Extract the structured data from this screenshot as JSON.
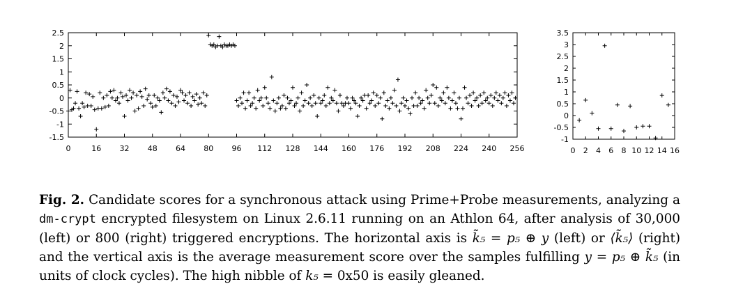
{
  "chart_data": [
    {
      "type": "scatter",
      "xlim": [
        0,
        256
      ],
      "ylim": [
        -1.5,
        2.5
      ],
      "x_ticks": [
        0,
        16,
        32,
        48,
        64,
        80,
        96,
        112,
        128,
        144,
        160,
        176,
        192,
        208,
        224,
        240,
        256
      ],
      "x_tick_labels": [
        "0",
        "16",
        "32",
        "48",
        "64",
        "80",
        "96",
        "112",
        "128",
        "144",
        "160",
        "176",
        "192",
        "208",
        "224",
        "240",
        "256"
      ],
      "y_ticks": [
        -1.5,
        -1,
        -0.5,
        0,
        0.5,
        1,
        1.5,
        2,
        2.5
      ],
      "y_tick_labels": [
        "-1.5",
        "-1",
        "-0.5",
        "0",
        "0.5",
        "1",
        "1.5",
        "2",
        "2.5"
      ],
      "marker": "+",
      "points": [
        [
          0,
          -0.5
        ],
        [
          1,
          0.3
        ],
        [
          2,
          -0.45
        ],
        [
          3,
          -0.4
        ],
        [
          4,
          -0.2
        ],
        [
          5,
          0.25
        ],
        [
          6,
          -0.4
        ],
        [
          7,
          -0.7
        ],
        [
          8,
          -0.2
        ],
        [
          9,
          -0.35
        ],
        [
          10,
          0.2
        ],
        [
          11,
          -0.3
        ],
        [
          12,
          0.15
        ],
        [
          13,
          -0.3
        ],
        [
          14,
          0.05
        ],
        [
          15,
          -0.45
        ],
        [
          16,
          -1.2
        ],
        [
          17,
          -0.4
        ],
        [
          18,
          0.2
        ],
        [
          19,
          -0.4
        ],
        [
          20,
          0.0
        ],
        [
          21,
          -0.35
        ],
        [
          22,
          0.1
        ],
        [
          23,
          -0.3
        ],
        [
          24,
          0.25
        ],
        [
          25,
          0.0
        ],
        [
          26,
          0.3
        ],
        [
          27,
          -0.1
        ],
        [
          28,
          0.0
        ],
        [
          29,
          -0.2
        ],
        [
          30,
          0.2
        ],
        [
          31,
          0.05
        ],
        [
          32,
          -0.7
        ],
        [
          33,
          0.1
        ],
        [
          34,
          -0.1
        ],
        [
          35,
          0.3
        ],
        [
          36,
          0.0
        ],
        [
          37,
          0.2
        ],
        [
          38,
          -0.5
        ],
        [
          39,
          0.1
        ],
        [
          40,
          -0.4
        ],
        [
          41,
          0.25
        ],
        [
          42,
          0.05
        ],
        [
          43,
          -0.3
        ],
        [
          44,
          0.35
        ],
        [
          45,
          -0.05
        ],
        [
          46,
          0.1
        ],
        [
          47,
          -0.2
        ],
        [
          48,
          -0.35
        ],
        [
          49,
          0.1
        ],
        [
          50,
          -0.3
        ],
        [
          51,
          0.0
        ],
        [
          52,
          -0.1
        ],
        [
          53,
          -0.55
        ],
        [
          54,
          0.2
        ],
        [
          55,
          0.0
        ],
        [
          56,
          0.35
        ],
        [
          57,
          -0.1
        ],
        [
          58,
          0.25
        ],
        [
          59,
          -0.2
        ],
        [
          60,
          0.1
        ],
        [
          61,
          -0.3
        ],
        [
          62,
          0.05
        ],
        [
          63,
          -0.15
        ],
        [
          64,
          0.3
        ],
        [
          65,
          0.2
        ],
        [
          66,
          -0.1
        ],
        [
          67,
          0.1
        ],
        [
          68,
          -0.2
        ],
        [
          69,
          0.2
        ],
        [
          70,
          -0.3
        ],
        [
          71,
          0.05
        ],
        [
          72,
          -0.1
        ],
        [
          73,
          0.15
        ],
        [
          74,
          -0.25
        ],
        [
          75,
          0.0
        ],
        [
          76,
          -0.2
        ],
        [
          77,
          0.2
        ],
        [
          78,
          -0.3
        ],
        [
          79,
          0.1
        ],
        [
          80,
          2.4
        ],
        [
          81,
          2.05
        ],
        [
          82,
          2.0
        ],
        [
          83,
          2.05
        ],
        [
          84,
          1.95
        ],
        [
          85,
          2.0
        ],
        [
          86,
          2.35
        ],
        [
          87,
          2.0
        ],
        [
          88,
          1.95
        ],
        [
          89,
          2.05
        ],
        [
          90,
          2.0
        ],
        [
          91,
          2.0
        ],
        [
          92,
          2.05
        ],
        [
          93,
          2.0
        ],
        [
          94,
          2.05
        ],
        [
          95,
          2.0
        ],
        [
          96,
          -0.1
        ],
        [
          97,
          -0.3
        ],
        [
          98,
          0.0
        ],
        [
          99,
          -0.2
        ],
        [
          100,
          0.2
        ],
        [
          101,
          -0.4
        ],
        [
          102,
          -0.1
        ],
        [
          103,
          0.2
        ],
        [
          104,
          -0.3
        ],
        [
          105,
          -0.2
        ],
        [
          106,
          0.0
        ],
        [
          107,
          -0.4
        ],
        [
          108,
          0.3
        ],
        [
          109,
          -0.1
        ],
        [
          110,
          0.0
        ],
        [
          111,
          -0.3
        ],
        [
          112,
          0.4
        ],
        [
          113,
          0.0
        ],
        [
          114,
          -0.2
        ],
        [
          115,
          -0.4
        ],
        [
          116,
          0.8
        ],
        [
          117,
          -0.1
        ],
        [
          118,
          -0.5
        ],
        [
          119,
          -0.2
        ],
        [
          120,
          0.0
        ],
        [
          121,
          -0.4
        ],
        [
          122,
          -0.3
        ],
        [
          123,
          0.1
        ],
        [
          124,
          -0.4
        ],
        [
          125,
          0.0
        ],
        [
          126,
          -0.2
        ],
        [
          127,
          -0.1
        ],
        [
          128,
          0.4
        ],
        [
          129,
          -0.3
        ],
        [
          130,
          -0.2
        ],
        [
          131,
          0.0
        ],
        [
          132,
          -0.5
        ],
        [
          133,
          0.2
        ],
        [
          134,
          -0.3
        ],
        [
          135,
          -0.1
        ],
        [
          136,
          0.5
        ],
        [
          137,
          -0.2
        ],
        [
          138,
          0.0
        ],
        [
          139,
          -0.3
        ],
        [
          140,
          0.1
        ],
        [
          141,
          -0.2
        ],
        [
          142,
          -0.7
        ],
        [
          143,
          0.0
        ],
        [
          144,
          -0.2
        ],
        [
          145,
          -0.1
        ],
        [
          146,
          0.1
        ],
        [
          147,
          -0.3
        ],
        [
          148,
          0.4
        ],
        [
          149,
          -0.2
        ],
        [
          150,
          0.0
        ],
        [
          151,
          -0.1
        ],
        [
          152,
          0.3
        ],
        [
          153,
          -0.2
        ],
        [
          154,
          -0.5
        ],
        [
          155,
          0.1
        ],
        [
          156,
          -0.2
        ],
        [
          157,
          -0.3
        ],
        [
          158,
          -0.2
        ],
        [
          159,
          0.0
        ],
        [
          160,
          -0.2
        ],
        [
          161,
          -0.4
        ],
        [
          162,
          0.0
        ],
        [
          163,
          -0.1
        ],
        [
          164,
          -0.2
        ],
        [
          165,
          -0.7
        ],
        [
          166,
          -0.3
        ],
        [
          167,
          0.0
        ],
        [
          168,
          -0.1
        ],
        [
          169,
          0.1
        ],
        [
          170,
          -0.4
        ],
        [
          171,
          0.1
        ],
        [
          172,
          -0.2
        ],
        [
          173,
          -0.1
        ],
        [
          174,
          0.2
        ],
        [
          175,
          -0.3
        ],
        [
          176,
          0.1
        ],
        [
          177,
          -0.2
        ],
        [
          178,
          0.0
        ],
        [
          179,
          -0.8
        ],
        [
          180,
          0.2
        ],
        [
          181,
          -0.3
        ],
        [
          182,
          -0.1
        ],
        [
          183,
          -0.4
        ],
        [
          184,
          0.0
        ],
        [
          185,
          -0.2
        ],
        [
          186,
          0.3
        ],
        [
          187,
          -0.3
        ],
        [
          188,
          0.7
        ],
        [
          189,
          -0.5
        ],
        [
          190,
          -0.2
        ],
        [
          191,
          0.0
        ],
        [
          192,
          -0.3
        ],
        [
          193,
          -0.1
        ],
        [
          194,
          -0.4
        ],
        [
          195,
          -0.6
        ],
        [
          196,
          0.0
        ],
        [
          197,
          -0.3
        ],
        [
          198,
          0.2
        ],
        [
          199,
          -0.3
        ],
        [
          200,
          0.0
        ],
        [
          201,
          -0.2
        ],
        [
          202,
          -0.1
        ],
        [
          203,
          -0.4
        ],
        [
          204,
          0.3
        ],
        [
          205,
          0.0
        ],
        [
          206,
          -0.2
        ],
        [
          207,
          0.1
        ],
        [
          208,
          0.5
        ],
        [
          209,
          -0.2
        ],
        [
          210,
          0.4
        ],
        [
          211,
          -0.3
        ],
        [
          212,
          0.0
        ],
        [
          213,
          -0.1
        ],
        [
          214,
          0.2
        ],
        [
          215,
          -0.2
        ],
        [
          216,
          0.4
        ],
        [
          217,
          0.0
        ],
        [
          218,
          -0.4
        ],
        [
          219,
          -0.1
        ],
        [
          220,
          0.2
        ],
        [
          221,
          -0.2
        ],
        [
          222,
          -0.4
        ],
        [
          223,
          0.0
        ],
        [
          224,
          -0.8
        ],
        [
          225,
          -0.4
        ],
        [
          226,
          0.4
        ],
        [
          227,
          0.0
        ],
        [
          228,
          -0.2
        ],
        [
          229,
          0.1
        ],
        [
          230,
          -0.3
        ],
        [
          231,
          0.2
        ],
        [
          232,
          -0.1
        ],
        [
          233,
          0.0
        ],
        [
          234,
          -0.3
        ],
        [
          235,
          0.1
        ],
        [
          236,
          -0.2
        ],
        [
          237,
          0.2
        ],
        [
          238,
          -0.1
        ],
        [
          239,
          0.0
        ],
        [
          240,
          -0.2
        ],
        [
          241,
          0.1
        ],
        [
          242,
          -0.3
        ],
        [
          243,
          0.0
        ],
        [
          244,
          0.2
        ],
        [
          245,
          -0.1
        ],
        [
          246,
          0.1
        ],
        [
          247,
          -0.2
        ],
        [
          248,
          0.0
        ],
        [
          249,
          0.2
        ],
        [
          250,
          -0.3
        ],
        [
          251,
          0.1
        ],
        [
          252,
          -0.1
        ],
        [
          253,
          0.2
        ],
        [
          254,
          -0.2
        ],
        [
          255,
          0.0
        ]
      ]
    },
    {
      "type": "scatter",
      "xlim": [
        0,
        16
      ],
      "ylim": [
        -1,
        3.5
      ],
      "x_ticks": [
        0,
        2,
        4,
        6,
        8,
        10,
        12,
        14,
        16
      ],
      "x_tick_labels": [
        "0",
        "2",
        "4",
        "6",
        "8",
        "10",
        "12",
        "14",
        "16"
      ],
      "y_ticks": [
        -1,
        -0.5,
        0,
        0.5,
        1,
        1.5,
        2,
        2.5,
        3,
        3.5
      ],
      "y_tick_labels": [
        "-1",
        "-0.5",
        "0",
        "0.5",
        "1",
        "1.5",
        "2",
        "2.5",
        "3",
        "3.5"
      ],
      "marker": "+",
      "points": [
        [
          1,
          -0.2
        ],
        [
          2,
          0.65
        ],
        [
          3,
          0.1
        ],
        [
          4,
          -0.55
        ],
        [
          5,
          2.95
        ],
        [
          6,
          -0.55
        ],
        [
          7,
          0.45
        ],
        [
          8,
          -0.65
        ],
        [
          9,
          0.4
        ],
        [
          10,
          -0.5
        ],
        [
          11,
          -0.45
        ],
        [
          12,
          -0.45
        ],
        [
          13,
          -0.95
        ],
        [
          14,
          0.85
        ],
        [
          15,
          0.45
        ]
      ]
    }
  ],
  "caption": {
    "label": "Fig. 2.",
    "t1": " Candidate scores for a synchronous attack using Prime+Probe measurements, analyzing a ",
    "code": "dm-crypt",
    "t2": " encrypted filesystem on Linux 2.6.11 running on an Athlon 64, after analysis of 30,000 (left) or 800 (right) triggered encryptions. The horizontal axis is ",
    "eq1": "k̃₅ = p₅ ⊕ y",
    "t3": " (left) or ",
    "eq2": "⟨k̃₅⟩",
    "t4": " (right) and the vertical axis is the average measurement score over the samples fulfilling ",
    "eq3": "y = p₅ ⊕ k̃₅",
    "t5": " (in units of clock cycles). The high nibble of ",
    "eq4": "k₅",
    "t6": " = 0x50 is easily gleaned."
  }
}
